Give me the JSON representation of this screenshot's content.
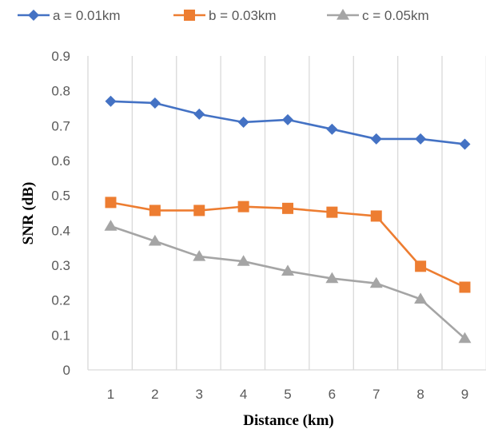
{
  "chart_data": {
    "type": "line",
    "title": "",
    "xlabel": "Distance (km)",
    "ylabel": "SNR (dB)",
    "x": [
      1,
      2,
      3,
      4,
      5,
      6,
      7,
      8,
      9
    ],
    "ylim": [
      0,
      0.9
    ],
    "yticks": [
      "0",
      "0.1",
      "0.2",
      "0.3",
      "0.4",
      "0.5",
      "0.6",
      "0.7",
      "0.8",
      "0.9"
    ],
    "xticks": [
      "1",
      "2",
      "3",
      "4",
      "5",
      "6",
      "7",
      "8",
      "9"
    ],
    "grid": "vertical",
    "legend_position": "top",
    "series": [
      {
        "name": "a = 0.01km",
        "color": "#4472C4",
        "marker": "diamond",
        "values": [
          0.77,
          0.765,
          0.733,
          0.71,
          0.717,
          0.69,
          0.662,
          0.662,
          0.647
        ]
      },
      {
        "name": "b = 0.03km",
        "color": "#ED7D31",
        "marker": "square",
        "values": [
          0.48,
          0.457,
          0.457,
          0.468,
          0.463,
          0.452,
          0.441,
          0.297,
          0.237
        ]
      },
      {
        "name": "c = 0.05km",
        "color": "#A5A5A5",
        "marker": "triangle",
        "values": [
          0.412,
          0.369,
          0.325,
          0.311,
          0.283,
          0.262,
          0.248,
          0.203,
          0.09
        ]
      }
    ]
  }
}
